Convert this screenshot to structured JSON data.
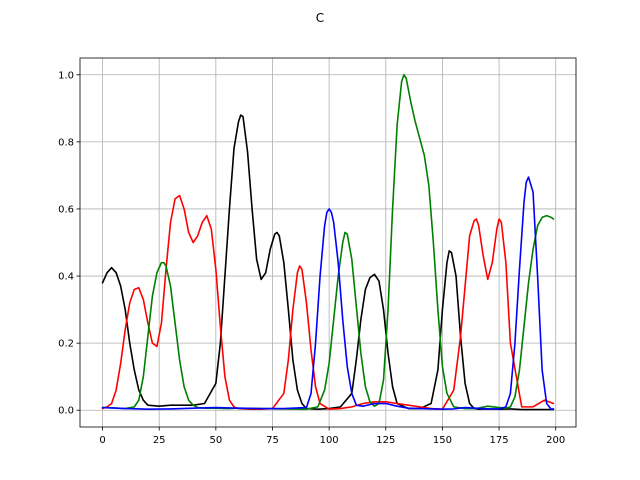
{
  "chart_data": {
    "type": "line",
    "title": "C",
    "xlabel": "",
    "ylabel": "",
    "xlim": [
      -9.95,
      208.95
    ],
    "ylim": [
      -0.05,
      1.05
    ],
    "grid": true,
    "x_ticks": [
      0,
      25,
      50,
      75,
      100,
      125,
      150,
      175,
      200
    ],
    "x_tick_labels": [
      "0",
      "25",
      "50",
      "75",
      "100",
      "125",
      "150",
      "175",
      "200"
    ],
    "y_ticks": [
      0.0,
      0.2,
      0.4,
      0.6,
      0.8,
      1.0
    ],
    "y_tick_labels": [
      "0.0",
      "0.2",
      "0.4",
      "0.6",
      "0.8",
      "1.0"
    ],
    "series": [
      {
        "name": "black",
        "color": "#000000",
        "x": [
          0,
          2,
          4,
          6,
          8,
          10,
          12,
          14,
          16,
          18,
          20,
          25,
          30,
          40,
          45,
          50,
          52,
          54,
          56,
          58,
          60,
          61,
          62,
          64,
          66,
          68,
          70,
          72,
          74,
          76,
          77,
          78,
          80,
          82,
          84,
          86,
          88,
          90,
          95,
          100,
          105,
          110,
          112,
          114,
          116,
          118,
          120,
          122,
          124,
          126,
          128,
          130,
          135,
          140,
          145,
          148,
          150,
          152,
          153,
          154,
          156,
          158,
          160,
          162,
          164,
          166,
          170,
          175,
          180,
          185,
          190,
          195,
          199
        ],
        "y": [
          0.38,
          0.41,
          0.425,
          0.41,
          0.37,
          0.3,
          0.2,
          0.12,
          0.06,
          0.03,
          0.015,
          0.012,
          0.015,
          0.015,
          0.02,
          0.08,
          0.2,
          0.4,
          0.6,
          0.78,
          0.86,
          0.88,
          0.875,
          0.77,
          0.6,
          0.45,
          0.39,
          0.41,
          0.48,
          0.525,
          0.53,
          0.52,
          0.44,
          0.3,
          0.15,
          0.06,
          0.02,
          0.005,
          0.003,
          0.005,
          0.01,
          0.05,
          0.15,
          0.27,
          0.36,
          0.395,
          0.405,
          0.385,
          0.3,
          0.17,
          0.07,
          0.02,
          0.005,
          0.005,
          0.02,
          0.12,
          0.3,
          0.44,
          0.475,
          0.47,
          0.4,
          0.22,
          0.08,
          0.02,
          0.005,
          0.003,
          0.004,
          0.003,
          0.004,
          0.002,
          0.002,
          0.002,
          0.002
        ]
      },
      {
        "name": "red",
        "color": "#ff0000",
        "x": [
          0,
          2,
          4,
          6,
          8,
          10,
          12,
          14,
          16,
          18,
          20,
          22,
          24,
          26,
          28,
          30,
          32,
          34,
          36,
          38,
          40,
          42,
          44,
          46,
          48,
          50,
          52,
          54,
          56,
          58,
          60,
          65,
          70,
          75,
          80,
          82,
          84,
          86,
          87,
          88,
          90,
          92,
          94,
          96,
          100,
          105,
          110,
          115,
          120,
          125,
          130,
          135,
          140,
          145,
          150,
          155,
          158,
          160,
          162,
          164,
          165,
          166,
          168,
          170,
          172,
          174,
          175,
          176,
          178,
          180,
          185,
          190,
          195,
          199
        ],
        "y": [
          0.005,
          0.01,
          0.02,
          0.06,
          0.14,
          0.24,
          0.32,
          0.36,
          0.365,
          0.33,
          0.26,
          0.2,
          0.19,
          0.26,
          0.42,
          0.56,
          0.63,
          0.64,
          0.6,
          0.53,
          0.5,
          0.52,
          0.56,
          0.58,
          0.54,
          0.42,
          0.25,
          0.1,
          0.03,
          0.01,
          0.005,
          0.003,
          0.003,
          0.005,
          0.05,
          0.15,
          0.3,
          0.41,
          0.43,
          0.42,
          0.32,
          0.18,
          0.07,
          0.02,
          0.003,
          0.005,
          0.01,
          0.02,
          0.025,
          0.025,
          0.02,
          0.015,
          0.01,
          0.005,
          0.003,
          0.06,
          0.22,
          0.37,
          0.52,
          0.565,
          0.57,
          0.55,
          0.46,
          0.39,
          0.44,
          0.54,
          0.57,
          0.56,
          0.44,
          0.2,
          0.01,
          0.01,
          0.03,
          0.02
        ]
      },
      {
        "name": "green",
        "color": "#008000",
        "x": [
          0,
          5,
          10,
          14,
          16,
          18,
          20,
          22,
          24,
          26,
          27,
          28,
          30,
          32,
          34,
          36,
          38,
          40,
          42,
          45,
          50,
          55,
          60,
          70,
          80,
          90,
          95,
          98,
          100,
          102,
          104,
          106,
          107,
          108,
          110,
          112,
          114,
          116,
          118,
          120,
          122,
          124,
          126,
          128,
          130,
          132,
          133,
          134,
          136,
          138,
          140,
          142,
          144,
          146,
          148,
          150,
          152,
          155,
          160,
          165,
          170,
          175,
          178,
          180,
          182,
          184,
          186,
          188,
          190,
          192,
          194,
          196,
          198,
          199
        ],
        "y": [
          0.008,
          0.007,
          0.005,
          0.01,
          0.03,
          0.1,
          0.22,
          0.34,
          0.41,
          0.44,
          0.44,
          0.43,
          0.37,
          0.26,
          0.15,
          0.07,
          0.03,
          0.015,
          0.008,
          0.006,
          0.006,
          0.005,
          0.006,
          0.005,
          0.004,
          0.003,
          0.01,
          0.06,
          0.14,
          0.27,
          0.4,
          0.5,
          0.53,
          0.525,
          0.45,
          0.31,
          0.17,
          0.07,
          0.025,
          0.012,
          0.02,
          0.09,
          0.3,
          0.6,
          0.85,
          0.98,
          1.0,
          0.99,
          0.92,
          0.86,
          0.81,
          0.76,
          0.67,
          0.5,
          0.3,
          0.13,
          0.05,
          0.01,
          0.005,
          0.005,
          0.012,
          0.008,
          0.006,
          0.01,
          0.04,
          0.12,
          0.25,
          0.38,
          0.48,
          0.55,
          0.575,
          0.58,
          0.575,
          0.57
        ]
      },
      {
        "name": "blue",
        "color": "#0000ff",
        "x": [
          0,
          10,
          20,
          30,
          40,
          50,
          60,
          70,
          80,
          90,
          92,
          94,
          96,
          98,
          99,
          100,
          101,
          102,
          104,
          106,
          108,
          110,
          112,
          115,
          120,
          125,
          130,
          135,
          140,
          145,
          150,
          155,
          160,
          165,
          170,
          175,
          178,
          180,
          182,
          184,
          186,
          187,
          188,
          190,
          192,
          194,
          196,
          198,
          199
        ],
        "y": [
          0.008,
          0.005,
          0.003,
          0.004,
          0.006,
          0.008,
          0.006,
          0.005,
          0.005,
          0.008,
          0.05,
          0.2,
          0.4,
          0.55,
          0.59,
          0.6,
          0.59,
          0.56,
          0.44,
          0.27,
          0.13,
          0.05,
          0.015,
          0.012,
          0.02,
          0.02,
          0.012,
          0.006,
          0.005,
          0.004,
          0.003,
          0.004,
          0.008,
          0.006,
          0.004,
          0.004,
          0.01,
          0.05,
          0.2,
          0.42,
          0.62,
          0.68,
          0.695,
          0.65,
          0.4,
          0.12,
          0.02,
          0.003,
          0.004
        ]
      }
    ]
  }
}
